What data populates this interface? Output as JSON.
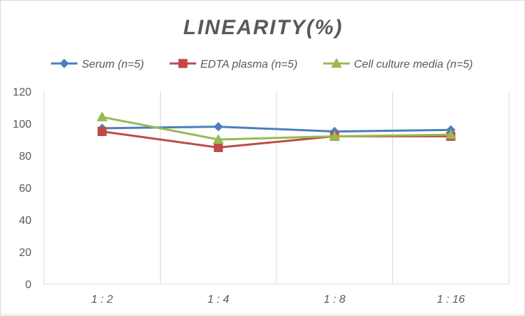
{
  "chart_data": {
    "type": "line",
    "title": "LINEARITY(%)",
    "categories": [
      "1:2",
      "1:4",
      "1:8",
      "1:16"
    ],
    "series": [
      {
        "name": "Serum (n=5)",
        "values": [
          97,
          98,
          95,
          96
        ],
        "color": "#4a7ebb",
        "marker": "diamond"
      },
      {
        "name": "EDTA plasma (n=5)",
        "values": [
          95,
          85,
          92,
          92
        ],
        "color": "#be4b48",
        "marker": "square"
      },
      {
        "name": "Cell culture media (n=5)",
        "values": [
          104,
          90,
          92,
          93
        ],
        "color": "#98b954",
        "marker": "triangle"
      }
    ],
    "yticks": [
      0,
      20,
      40,
      60,
      80,
      100,
      120
    ],
    "ylim": [
      0,
      120
    ],
    "grid": "vertical",
    "legend": "top"
  }
}
